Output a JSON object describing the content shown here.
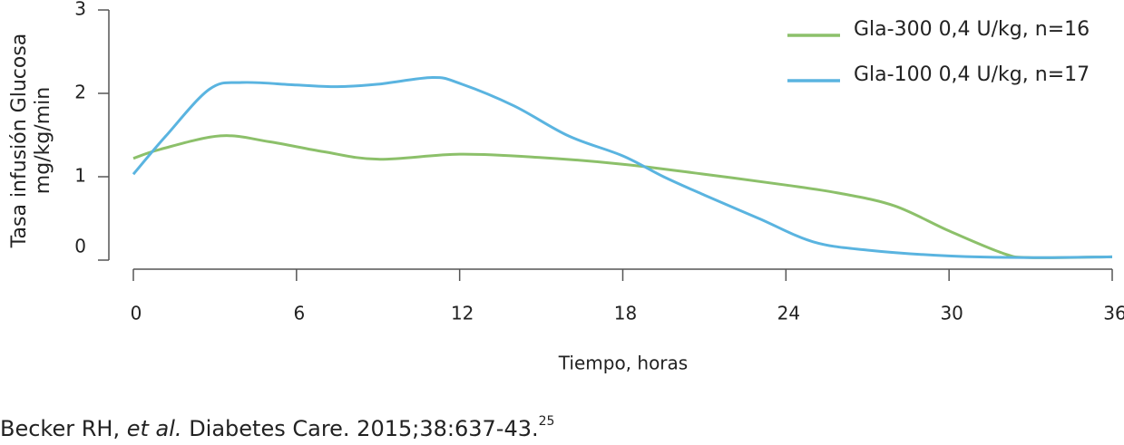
{
  "chart_data": {
    "type": "line",
    "y_label": [
      "Tasa infusión Glucosa",
      "mg/kg/min"
    ],
    "x_label": "Tiempo, horas",
    "x": [
      0,
      1,
      1.2,
      2.8,
      3.2,
      4,
      5,
      6,
      7,
      7.5,
      9,
      11,
      12,
      14,
      15,
      16,
      18,
      19.5,
      21,
      23,
      24,
      25,
      26,
      27,
      28,
      30,
      32,
      33,
      36
    ],
    "series": [
      {
        "name": "Gla-300 0,4 U/kg, n=16",
        "color": "#8cc06a",
        "values": [
          1.22,
          1.33,
          null,
          null,
          1.49,
          null,
          1.42,
          null,
          1.3,
          null,
          1.21,
          null,
          1.27,
          null,
          1.23,
          null,
          1.15,
          null,
          1.03,
          null,
          0.9,
          null,
          0.8,
          null,
          0.65,
          0.35,
          0.08,
          0.03,
          0.04
        ]
      },
      {
        "name": "Gla-100 0,4 U/kg, n=17",
        "color": "#5ab4e0",
        "values": [
          1.03,
          null,
          1.49,
          2.05,
          null,
          2.13,
          null,
          2.1,
          null,
          2.08,
          2.11,
          2.19,
          2.12,
          1.85,
          null,
          1.49,
          1.25,
          1.0,
          0.78,
          0.5,
          null,
          0.22,
          null,
          0.12,
          null,
          0.05,
          null,
          0.03,
          0.04
        ]
      }
    ],
    "xlim": [
      0,
      36
    ],
    "xticks": [
      0,
      6,
      12,
      18,
      24,
      30,
      36
    ],
    "ylim": [
      0,
      3
    ],
    "yticks": [
      0,
      1,
      2,
      3
    ],
    "legend": "top-right",
    "source": {
      "author": "Becker RH,",
      "etal": "et al.",
      "journal": "Diabetes Care. 2015;38:637-43.",
      "ref": "25"
    }
  }
}
